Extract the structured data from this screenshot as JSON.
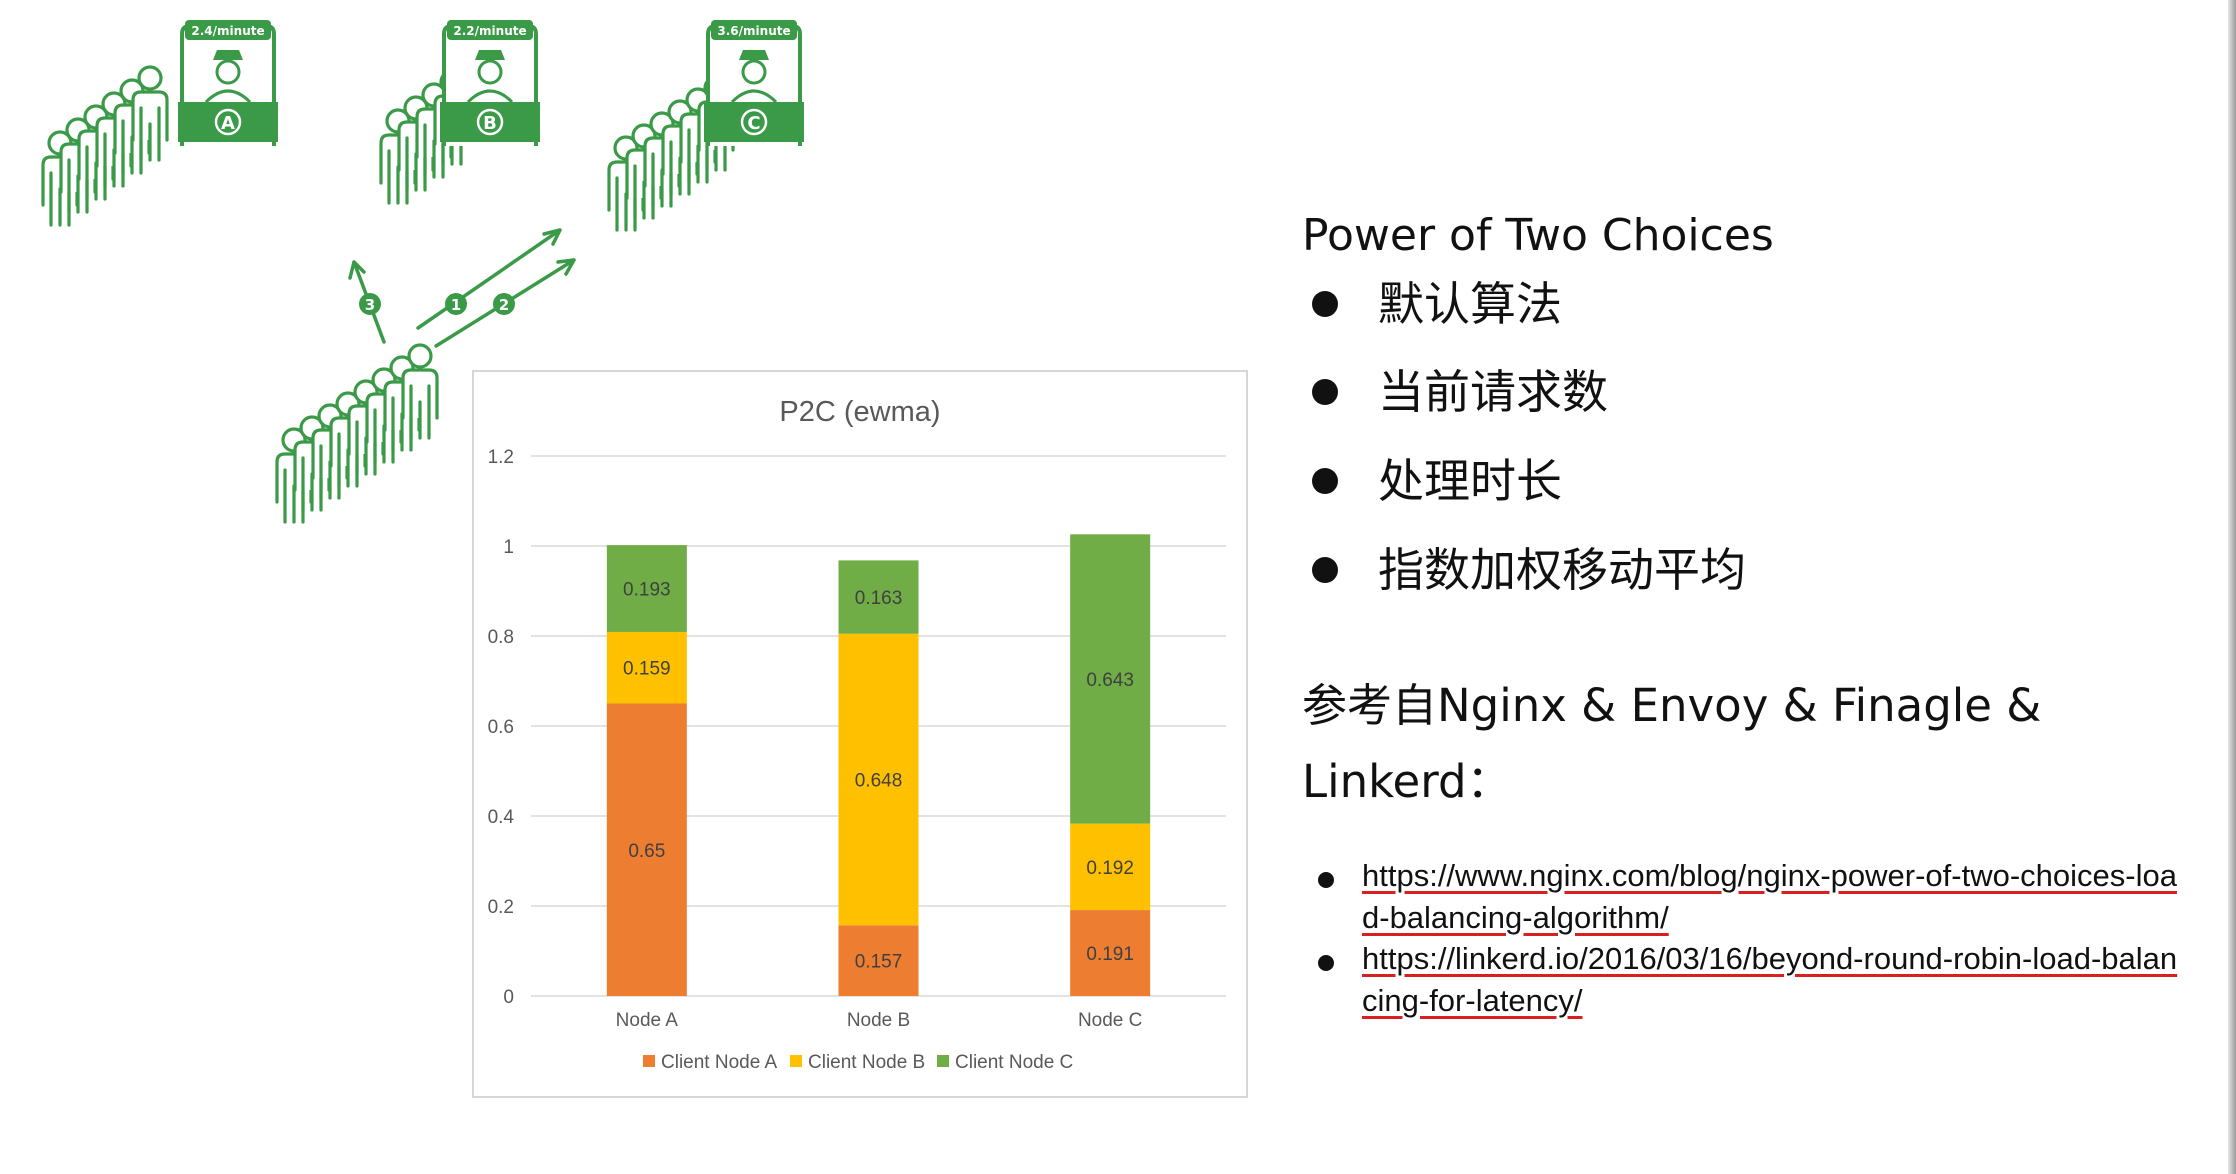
{
  "illustration": {
    "queues": [
      {
        "letter": "A",
        "rate": "2.4/minute"
      },
      {
        "letter": "B",
        "rate": "2.2/minute"
      },
      {
        "letter": "C",
        "rate": "3.6/minute"
      }
    ],
    "steps": [
      "1",
      "2",
      "3"
    ],
    "color": "#3a9a47"
  },
  "chart_data": {
    "type": "bar",
    "stacked": true,
    "title": "P2C  (ewma)",
    "categories": [
      "Node A",
      "Node B",
      "Node C"
    ],
    "series": [
      {
        "name": "Client Node A",
        "color": "#ed7d31",
        "values": [
          0.65,
          0.157,
          0.191
        ]
      },
      {
        "name": "Client Node B",
        "color": "#ffc000",
        "values": [
          0.159,
          0.648,
          0.192
        ]
      },
      {
        "name": "Client Node C",
        "color": "#70ad47",
        "values": [
          0.193,
          0.163,
          0.643
        ]
      }
    ],
    "ylim": [
      0,
      1.2
    ],
    "yticks": [
      "0",
      "0.2",
      "0.4",
      "0.6",
      "0.8",
      "1",
      "1.2"
    ],
    "grid": true,
    "legend_position": "bottom"
  },
  "content": {
    "heading": "Power of Two Choices",
    "bullets": [
      "默认算法",
      "当前请求数",
      "处理时长",
      "指数加权移动平均"
    ],
    "reference_heading": "参考自Nginx & Envoy & Finagle & Linkerd：",
    "links": [
      "https://www.nginx.com/blog/nginx-power-of-two-choices-load-balancing-algorithm/",
      "https://linkerd.io/2016/03/16/beyond-round-robin-load-balancing-for-latency/"
    ]
  }
}
